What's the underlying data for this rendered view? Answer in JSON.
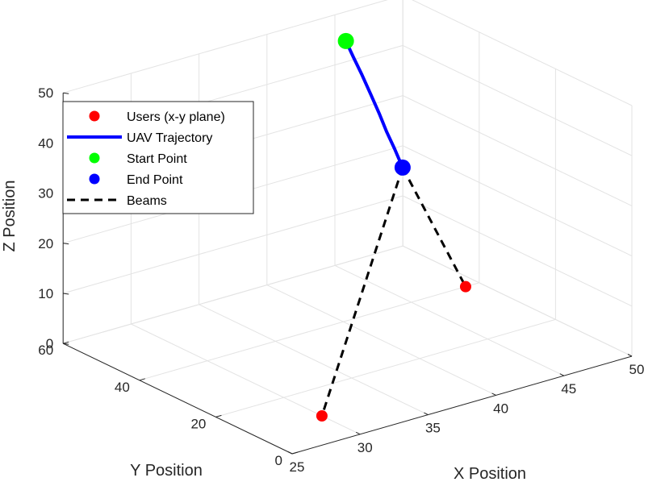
{
  "chart_data": {
    "type": "scatter",
    "projection": "3d",
    "xlabel": "X Position",
    "ylabel": "Y Position",
    "zlabel": "Z Position",
    "xlim": [
      25,
      50
    ],
    "ylim": [
      0,
      60
    ],
    "zlim": [
      0,
      50
    ],
    "xticks": [
      "25",
      "30",
      "35",
      "40",
      "45",
      "50"
    ],
    "yticks": [
      "0",
      "20",
      "40",
      "60"
    ],
    "zticks": [
      "0",
      "10",
      "20",
      "30",
      "40",
      "50"
    ],
    "grid": true,
    "legend_position": "top-left",
    "legend": [
      {
        "label": "Users (x-y plane)",
        "marker": "dot",
        "color": "#ff0000"
      },
      {
        "label": "UAV Trajectory",
        "marker": "line",
        "color": "#0000ff"
      },
      {
        "label": "Start Point",
        "marker": "dot",
        "color": "#00ff00"
      },
      {
        "label": "End Point",
        "marker": "dot",
        "color": "#0000ff"
      },
      {
        "label": "Beams",
        "marker": "dashed",
        "color": "#000000"
      }
    ],
    "users": [
      {
        "x": 30,
        "y": 10,
        "z": 0
      },
      {
        "x": 49,
        "y": 40,
        "z": 0
      }
    ],
    "trajectory": {
      "x": [
        43.0,
        42.94,
        42.86,
        42.8,
        42.78,
        42.8,
        42.9,
        43.1
      ],
      "y": [
        50.0,
        47.8,
        45.3,
        42.8,
        40.5,
        38.6,
        36.9,
        35.5
      ],
      "z": [
        50.0,
        47.6,
        45.1,
        42.2,
        39.2,
        36.2,
        33.4,
        30.0
      ]
    },
    "start_point": {
      "x": 43.0,
      "y": 50.0,
      "z": 50.0
    },
    "end_point": {
      "x": 43.1,
      "y": 35.5,
      "z": 30.0
    },
    "beams": [
      {
        "from": {
          "x": 43.1,
          "y": 35.5,
          "z": 30.0
        },
        "to": {
          "x": 30,
          "y": 10,
          "z": 0
        }
      },
      {
        "from": {
          "x": 43.1,
          "y": 35.5,
          "z": 30.0
        },
        "to": {
          "x": 49,
          "y": 40,
          "z": 0
        }
      }
    ],
    "colors": {
      "users": "#ff0000",
      "trajectory": "#0000ff",
      "start": "#00ff00",
      "end": "#0000ff",
      "beams": "#000000"
    }
  }
}
